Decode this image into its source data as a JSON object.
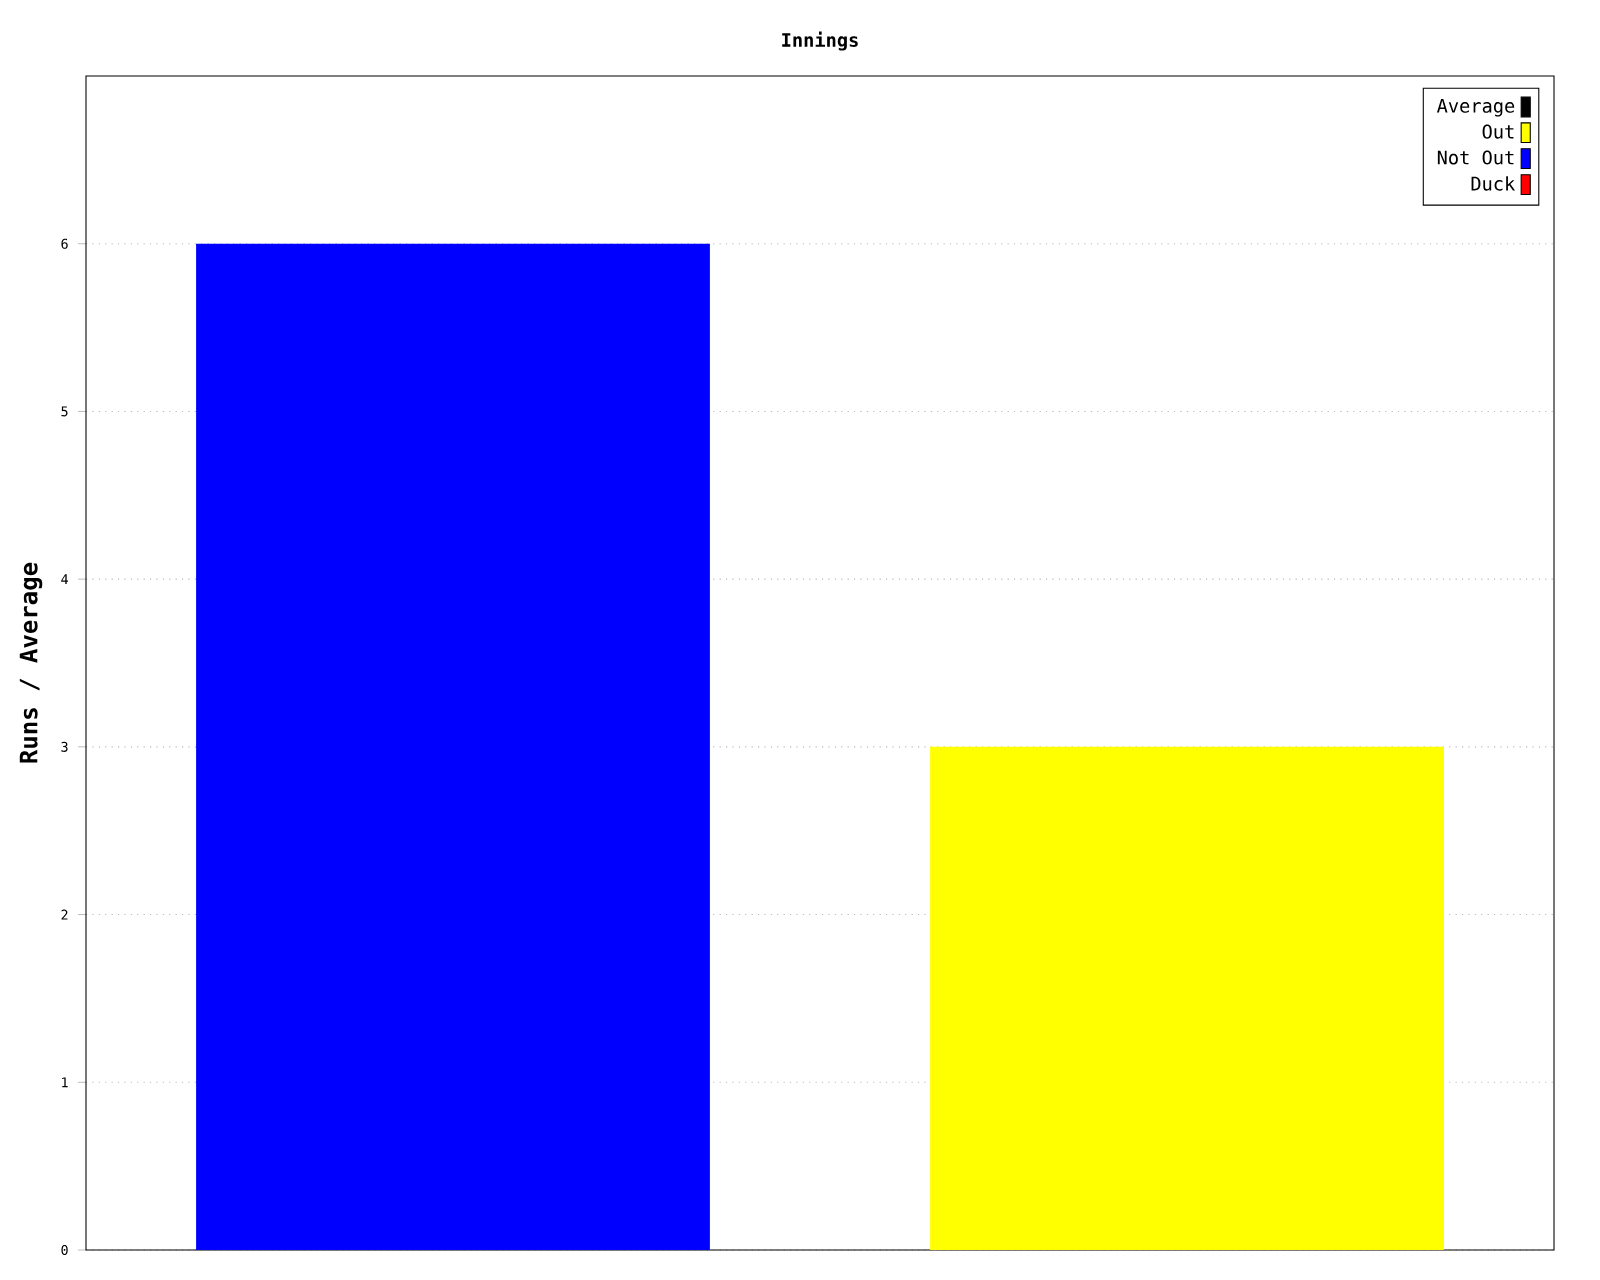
{
  "chart_data": {
    "type": "bar",
    "title": "Innings",
    "ylabel": "Runs / Average",
    "categories": [
      null,
      null
    ],
    "series": [
      {
        "name": "Average",
        "color": "#000000",
        "values": [
          null,
          null
        ]
      },
      {
        "name": "Out",
        "color": "#ffff00",
        "values": [
          null,
          3
        ]
      },
      {
        "name": "Not Out",
        "color": "#0000ff",
        "values": [
          6,
          null
        ]
      },
      {
        "name": "Duck",
        "color": "#ff0000",
        "values": [
          null,
          null
        ]
      }
    ],
    "ylim": [
      0,
      7
    ],
    "yticks": [
      0,
      1,
      2,
      3,
      4,
      5,
      6
    ],
    "grid": "y",
    "legend": "top right"
  }
}
